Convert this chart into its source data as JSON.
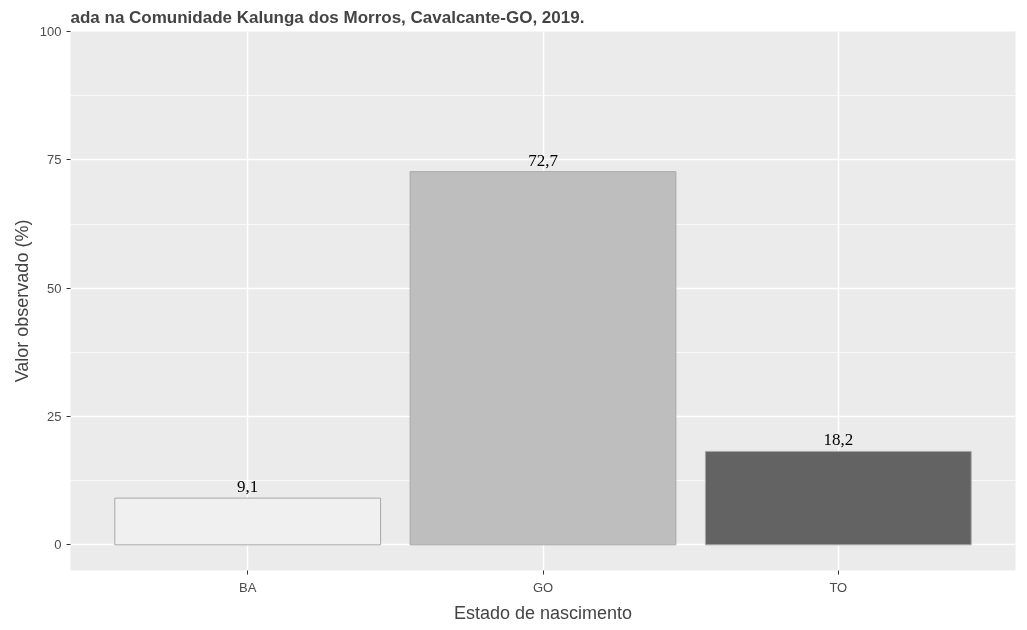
{
  "chart_data": {
    "type": "bar",
    "title": "ada na Comunidade Kalunga dos Morros, Cavalcante-GO, 2019.",
    "xlabel": "Estado de nascimento",
    "ylabel": "Valor observado (%)",
    "categories": [
      "BA",
      "GO",
      "TO"
    ],
    "values": [
      9.1,
      72.7,
      18.2
    ],
    "colors": [
      "#f0f0f0",
      "#bebebe",
      "#636363"
    ],
    "value_labels": [
      "9,1",
      "72,7",
      "18,2"
    ],
    "ylim": [
      -5,
      100
    ],
    "yticks": [
      0,
      25,
      50,
      75,
      100
    ],
    "grid": true
  }
}
